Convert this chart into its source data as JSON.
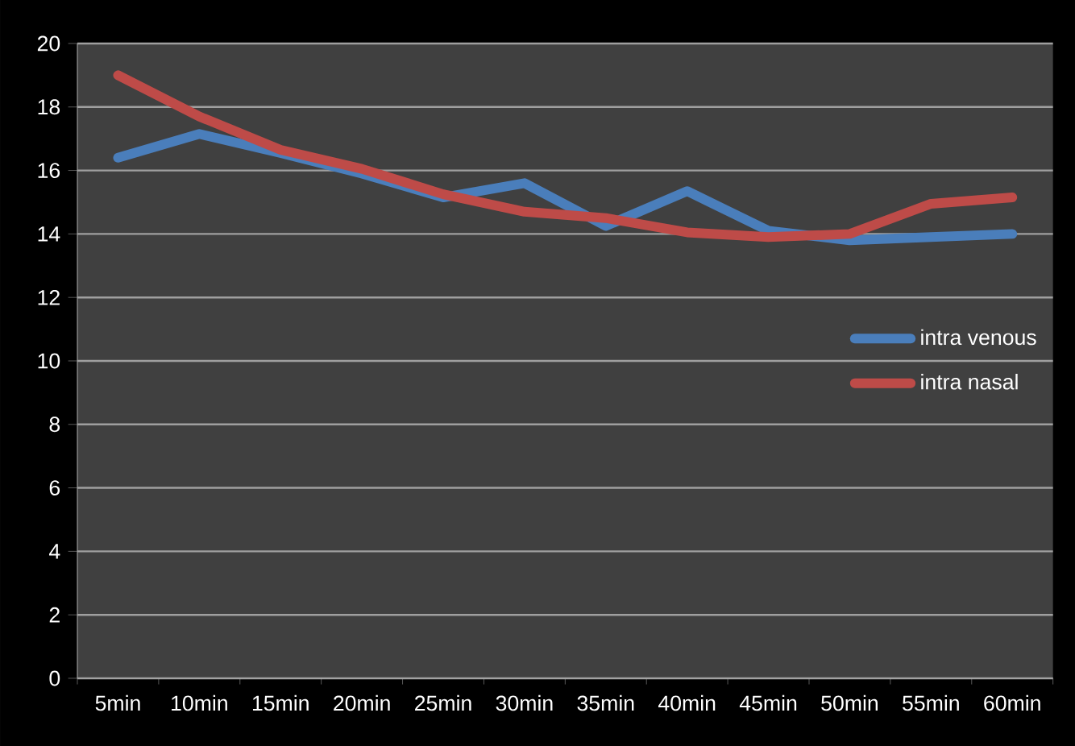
{
  "chart_data": {
    "type": "line",
    "categories": [
      "5min",
      "10min",
      "15min",
      "20min",
      "25min",
      "30min",
      "35min",
      "40min",
      "45min",
      "50min",
      "55min",
      "60min"
    ],
    "series": [
      {
        "name": "intra venous",
        "color": "#4a7ebb",
        "values": [
          16.4,
          17.15,
          16.55,
          15.9,
          15.15,
          15.6,
          14.25,
          15.35,
          14.1,
          13.8,
          13.9,
          14.0
        ]
      },
      {
        "name": "intra nasal",
        "color": "#be4b48",
        "values": [
          19.0,
          17.7,
          16.65,
          16.05,
          15.25,
          14.7,
          14.5,
          14.05,
          13.9,
          14.0,
          14.95,
          15.15
        ]
      }
    ],
    "ylim": [
      0,
      20
    ],
    "yticks": [
      0,
      2,
      4,
      6,
      8,
      10,
      12,
      14,
      16,
      18,
      20
    ],
    "grid": "y",
    "legend": "right",
    "marker": "none",
    "line_style": "solid"
  }
}
